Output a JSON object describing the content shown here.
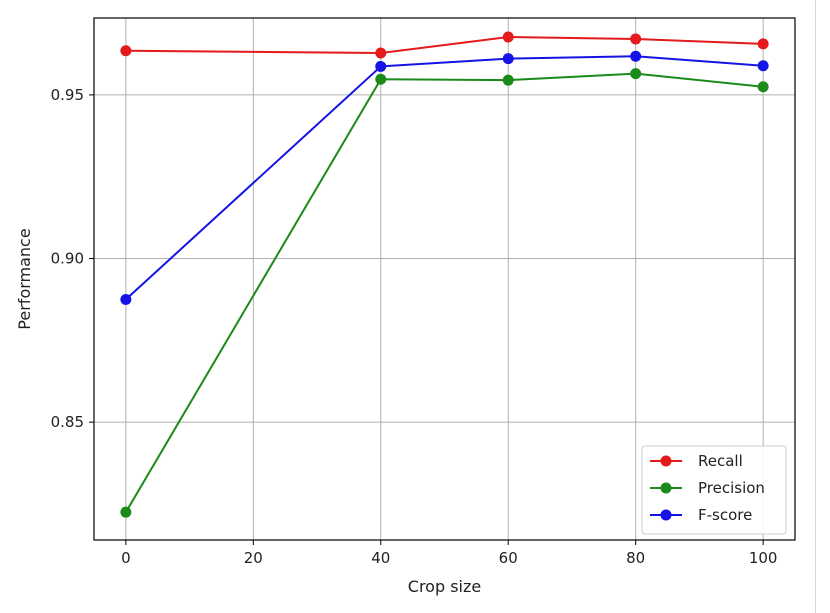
{
  "chart_data": {
    "type": "line",
    "xlabel": "Crop size",
    "ylabel": "Performance",
    "xlim": [
      -5,
      105
    ],
    "ylim": [
      0.814,
      0.9735
    ],
    "x_ticks": [
      0,
      20,
      40,
      60,
      80,
      100
    ],
    "y_ticks": [
      0.85,
      0.9,
      0.95
    ],
    "grid": true,
    "legend_position": "bottom-right",
    "x": [
      0,
      40,
      60,
      80,
      100
    ],
    "series": [
      {
        "name": "Recall",
        "color": "#e41a1c",
        "values": [
          0.9635,
          0.9628,
          0.9677,
          0.9671,
          0.9656
        ]
      },
      {
        "name": "Precision",
        "color": "#1a8a1a",
        "values": [
          0.8225,
          0.9548,
          0.9545,
          0.9565,
          0.9525
        ]
      },
      {
        "name": "F-score",
        "color": "#1414e6",
        "values": [
          0.8875,
          0.9587,
          0.9611,
          0.9618,
          0.9589
        ]
      }
    ]
  }
}
